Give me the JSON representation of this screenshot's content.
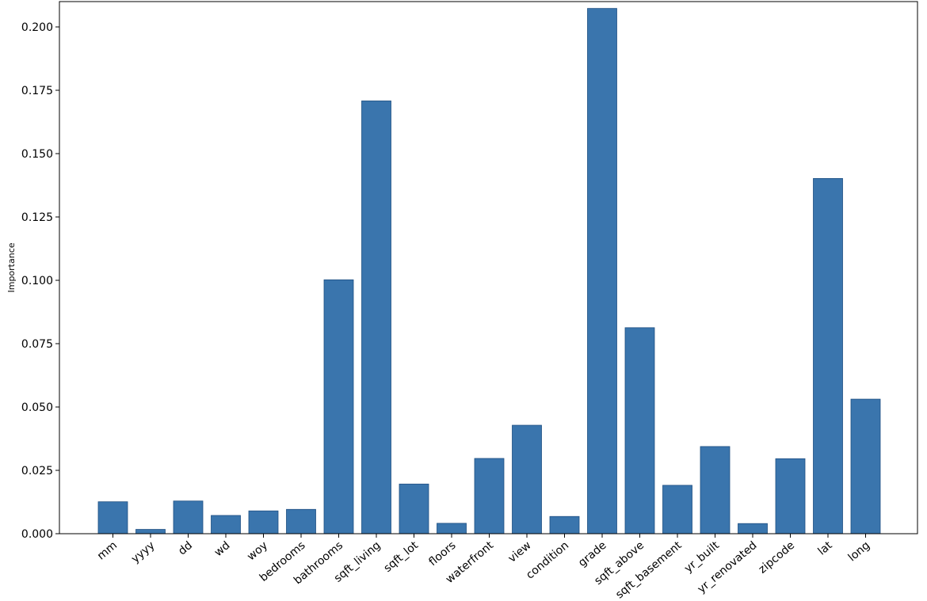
{
  "chart_data": {
    "type": "bar",
    "title": "",
    "xlabel": "",
    "ylabel": "Importance",
    "ylim": [
      0,
      0.21
    ],
    "yticks": [
      "0.000",
      "0.025",
      "0.050",
      "0.075",
      "0.100",
      "0.125",
      "0.150",
      "0.175",
      "0.200"
    ],
    "bar_color": "#3a75ad",
    "bar_edge_color": "#1f4f82",
    "categories": [
      "mm",
      "yyyy",
      "dd",
      "wd",
      "woy",
      "bedrooms",
      "bathrooms",
      "sqft_living",
      "sqft_lot",
      "floors",
      "waterfront",
      "view",
      "condition",
      "grade",
      "sqft_above",
      "sqft_basement",
      "yr_built",
      "yr_renovated",
      "zipcode",
      "lat",
      "long"
    ],
    "values": [
      0.0126,
      0.0017,
      0.0129,
      0.0072,
      0.009,
      0.0096,
      0.1002,
      0.1708,
      0.0196,
      0.0041,
      0.0297,
      0.0428,
      0.0068,
      0.2073,
      0.0813,
      0.0191,
      0.0344,
      0.004,
      0.0296,
      0.1402,
      0.0531
    ],
    "grid": false
  }
}
